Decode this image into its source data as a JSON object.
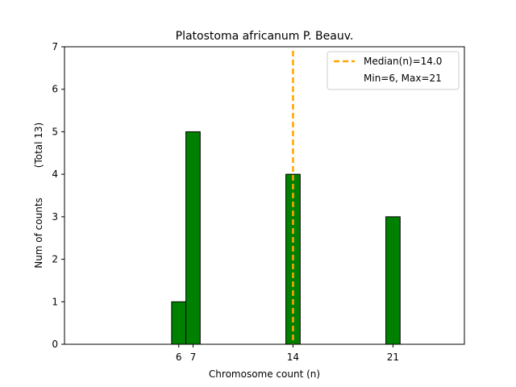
{
  "chart_data": {
    "type": "bar",
    "title": "Platostoma africanum P. Beauv.",
    "xlabel": "Chromosome count (n)",
    "ylabel": "Num of counts",
    "ylabel_note": "(Total 13)",
    "x": [
      6,
      7,
      14,
      21
    ],
    "values": [
      1,
      5,
      4,
      3
    ],
    "xticks": [
      6,
      7,
      14,
      21
    ],
    "yticks": [
      0,
      1,
      2,
      3,
      4,
      5,
      6,
      7
    ],
    "xlim": [
      -2,
      26
    ],
    "ylim": [
      0,
      7
    ],
    "bar_width": 1,
    "bar_color": "#008000",
    "bar_edge_color": "#000000",
    "median": 14.0,
    "median_line_color": "#ffa500",
    "legend": {
      "placement": "top-right",
      "entries": [
        "Median(n)=14.0",
        "Min=6, Max=21"
      ]
    },
    "grid": false
  }
}
